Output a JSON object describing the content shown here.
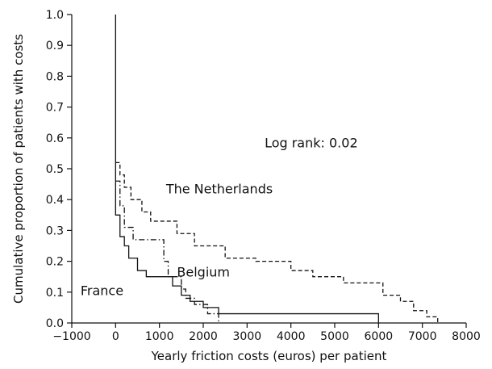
{
  "chart_data": {
    "type": "line",
    "title": "",
    "xlabel": "Yearly friction costs (euros) per patient",
    "ylabel": "Cumulative proportion of patients with costs",
    "xlim": [
      -1000,
      8000
    ],
    "ylim": [
      0,
      1.0
    ],
    "xticks": [
      "−1000",
      "0",
      "1000",
      "2000",
      "3000",
      "4000",
      "5000",
      "6000",
      "7000",
      "8000"
    ],
    "yticks": [
      "0.0",
      "0.1",
      "0.2",
      "0.3",
      "0.4",
      "0.5",
      "0.6",
      "0.7",
      "0.8",
      "0.9",
      "1.0"
    ],
    "grid": false,
    "step": true,
    "series": [
      {
        "name": "France",
        "style": "solid",
        "x": [
          0,
          0,
          100,
          200,
          300,
          500,
          700,
          1000,
          1300,
          1500,
          1700,
          2000,
          2350,
          6000
        ],
        "y": [
          1.0,
          0.35,
          0.28,
          0.25,
          0.21,
          0.17,
          0.15,
          0.15,
          0.12,
          0.09,
          0.07,
          0.05,
          0.03,
          0.0
        ]
      },
      {
        "name": "Belgium",
        "style": "dashdot",
        "x": [
          0,
          100,
          200,
          400,
          1000,
          1100,
          1200,
          1500,
          1600,
          1800,
          2100,
          2350
        ],
        "y": [
          0.46,
          0.38,
          0.31,
          0.27,
          0.27,
          0.2,
          0.15,
          0.11,
          0.08,
          0.06,
          0.03,
          0.0
        ]
      },
      {
        "name": "The Netherlands",
        "style": "dashed",
        "x": [
          0,
          100,
          200,
          350,
          600,
          800,
          1100,
          1400,
          1800,
          2500,
          3200,
          4000,
          4500,
          5200,
          6100,
          6500,
          6800,
          7100,
          7350
        ],
        "y": [
          0.52,
          0.48,
          0.44,
          0.4,
          0.36,
          0.33,
          0.33,
          0.29,
          0.25,
          0.21,
          0.2,
          0.17,
          0.15,
          0.13,
          0.09,
          0.07,
          0.04,
          0.02,
          0.0
        ]
      }
    ],
    "annotations": {
      "log_rank": "Log rank: 0.02"
    },
    "series_labels": [
      {
        "text": "The Netherlands",
        "x": 1150,
        "y": 0.42
      },
      {
        "text": "Belgium",
        "x": 1400,
        "y": 0.15
      },
      {
        "text": "France",
        "x": -800,
        "y": 0.09
      }
    ],
    "annotation_pos": {
      "x": 3400,
      "y": 0.57
    }
  }
}
